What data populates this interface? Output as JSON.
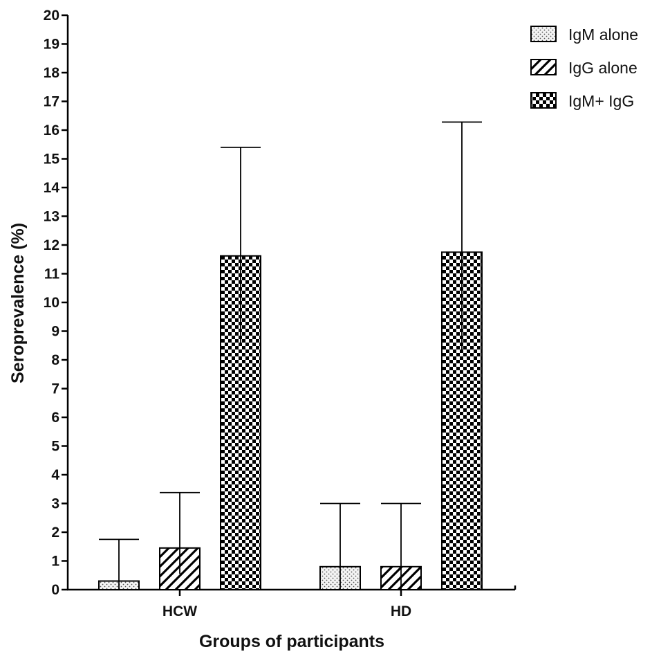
{
  "chart_data": {
    "type": "bar",
    "categories": [
      "HCW",
      "HD"
    ],
    "series": [
      {
        "name": "IgM alone",
        "pattern": "dots",
        "values": [
          0.3,
          0.8
        ],
        "error_upper": [
          1.75,
          3.0
        ],
        "error_lower": [
          0.0,
          0.0
        ]
      },
      {
        "name": "IgG alone",
        "pattern": "diagonal-hatch",
        "values": [
          1.45,
          0.8
        ],
        "error_upper": [
          3.38,
          3.0
        ],
        "error_lower": [
          0.55,
          0.0
        ]
      },
      {
        "name": "IgM+ IgG",
        "pattern": "checkerboard",
        "values": [
          11.62,
          11.75
        ],
        "error_upper": [
          15.4,
          16.28
        ],
        "error_lower": [
          8.6,
          8.28
        ]
      }
    ],
    "xlabel": "Groups of participants",
    "ylabel": "Seroprevalence (%)",
    "ylim": [
      0,
      20
    ],
    "yticks": [
      "0",
      "1",
      "2",
      "3",
      "4",
      "5",
      "6",
      "7",
      "8",
      "9",
      "10",
      "11",
      "12",
      "13",
      "14",
      "15",
      "16",
      "17",
      "18",
      "19",
      "20"
    ],
    "grid": false,
    "legend_position": "top-right",
    "colors": {
      "bar_fill": "#ffffff",
      "pattern": "#000000",
      "axis": "#000000"
    }
  }
}
